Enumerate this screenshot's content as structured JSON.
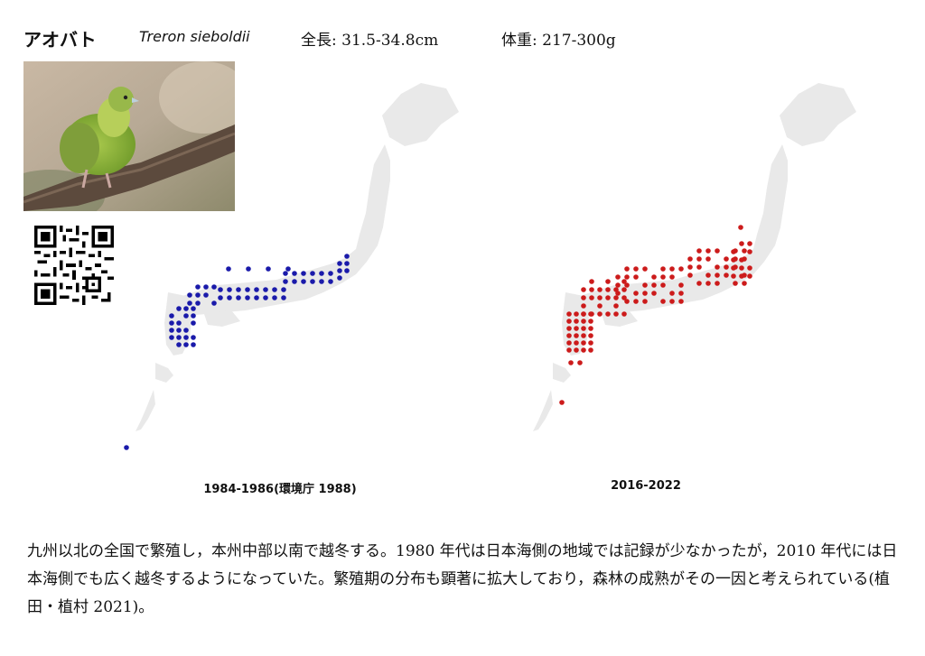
{
  "header": {
    "name_jp": "アオバト",
    "name_sci": "Treron sieboldii",
    "length_label": "全長:",
    "length_value": "31.5-34.8cm",
    "weight_label": "体重:",
    "weight_value": "217-300g"
  },
  "photo": {
    "subject": "green-pigeon-on-branch"
  },
  "qr": {
    "icon": "qr-code-icon"
  },
  "maps": [
    {
      "caption": "1984-1986(環境庁 1988)",
      "dot_color": "#1a1aaa"
    },
    {
      "caption": "2016-2022",
      "dot_color": "#cc1b1b"
    }
  ],
  "colors": {
    "land": "#e9e9e9",
    "period1": "#1a1aaa",
    "period2": "#cc1b1b"
  },
  "description": "九州以北の全国で繁殖し，本州中部以南で越冬する。1980 年代は日本海側の地域では記録が少なかったが，2010 年代には日本海側でも広く越冬するようになっていた。繁殖期の分布も顕著に拡大しており，森林の成熟がその一因と考えられている(植田・植村 2021)。"
}
